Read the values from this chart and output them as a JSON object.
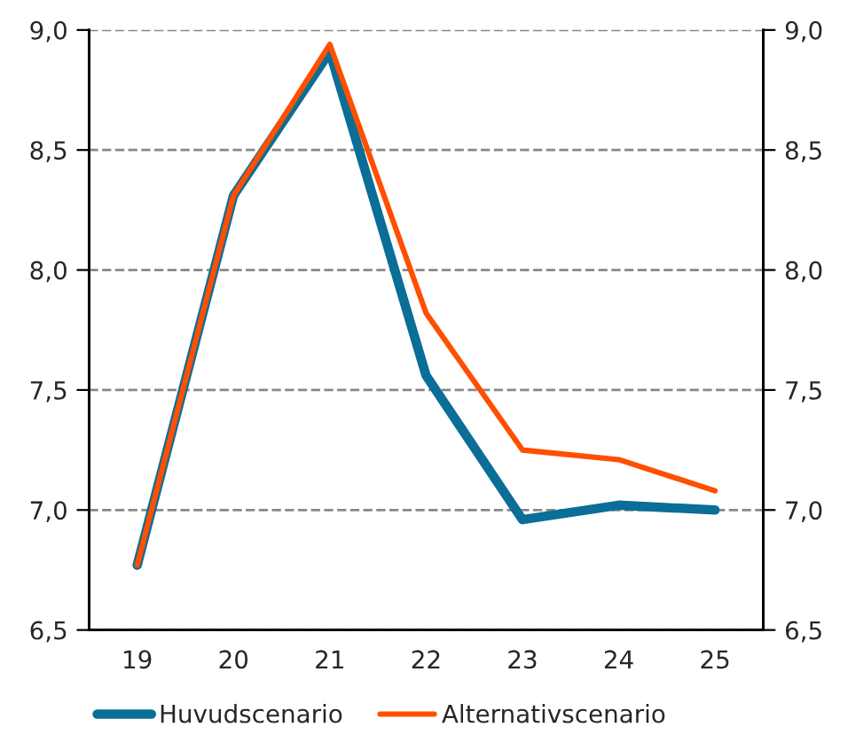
{
  "chart_data": {
    "type": "line",
    "categories": [
      "19",
      "20",
      "21",
      "22",
      "23",
      "24",
      "25"
    ],
    "series": [
      {
        "name": "Huvudscenario",
        "color": "#0a6e96",
        "values": [
          6.77,
          8.31,
          8.91,
          7.56,
          6.96,
          7.02,
          7.0
        ]
      },
      {
        "name": "Alternativscenario",
        "color": "#ff4f00",
        "values": [
          6.77,
          8.31,
          8.94,
          7.82,
          7.25,
          7.21,
          7.08
        ]
      }
    ],
    "ylim": [
      6.5,
      9.0
    ],
    "yticks": [
      {
        "value": 6.5,
        "label": "6,5"
      },
      {
        "value": 7.0,
        "label": "7,0"
      },
      {
        "value": 7.5,
        "label": "7,5"
      },
      {
        "value": 8.0,
        "label": "8,0"
      },
      {
        "value": 8.5,
        "label": "8,5"
      },
      {
        "value": 9.0,
        "label": "9,0"
      }
    ],
    "y2lim": [
      6.5,
      9.0
    ],
    "y2ticks": [
      {
        "value": 6.5,
        "label": "6,5"
      },
      {
        "value": 7.0,
        "label": "7,0"
      },
      {
        "value": 7.5,
        "label": "7,5"
      },
      {
        "value": 8.0,
        "label": "8,0"
      },
      {
        "value": 8.5,
        "label": "8,5"
      },
      {
        "value": 9.0,
        "label": "9,0"
      }
    ],
    "grid": "y",
    "legend": "bottom",
    "marker": "none",
    "line_style": "solid"
  }
}
